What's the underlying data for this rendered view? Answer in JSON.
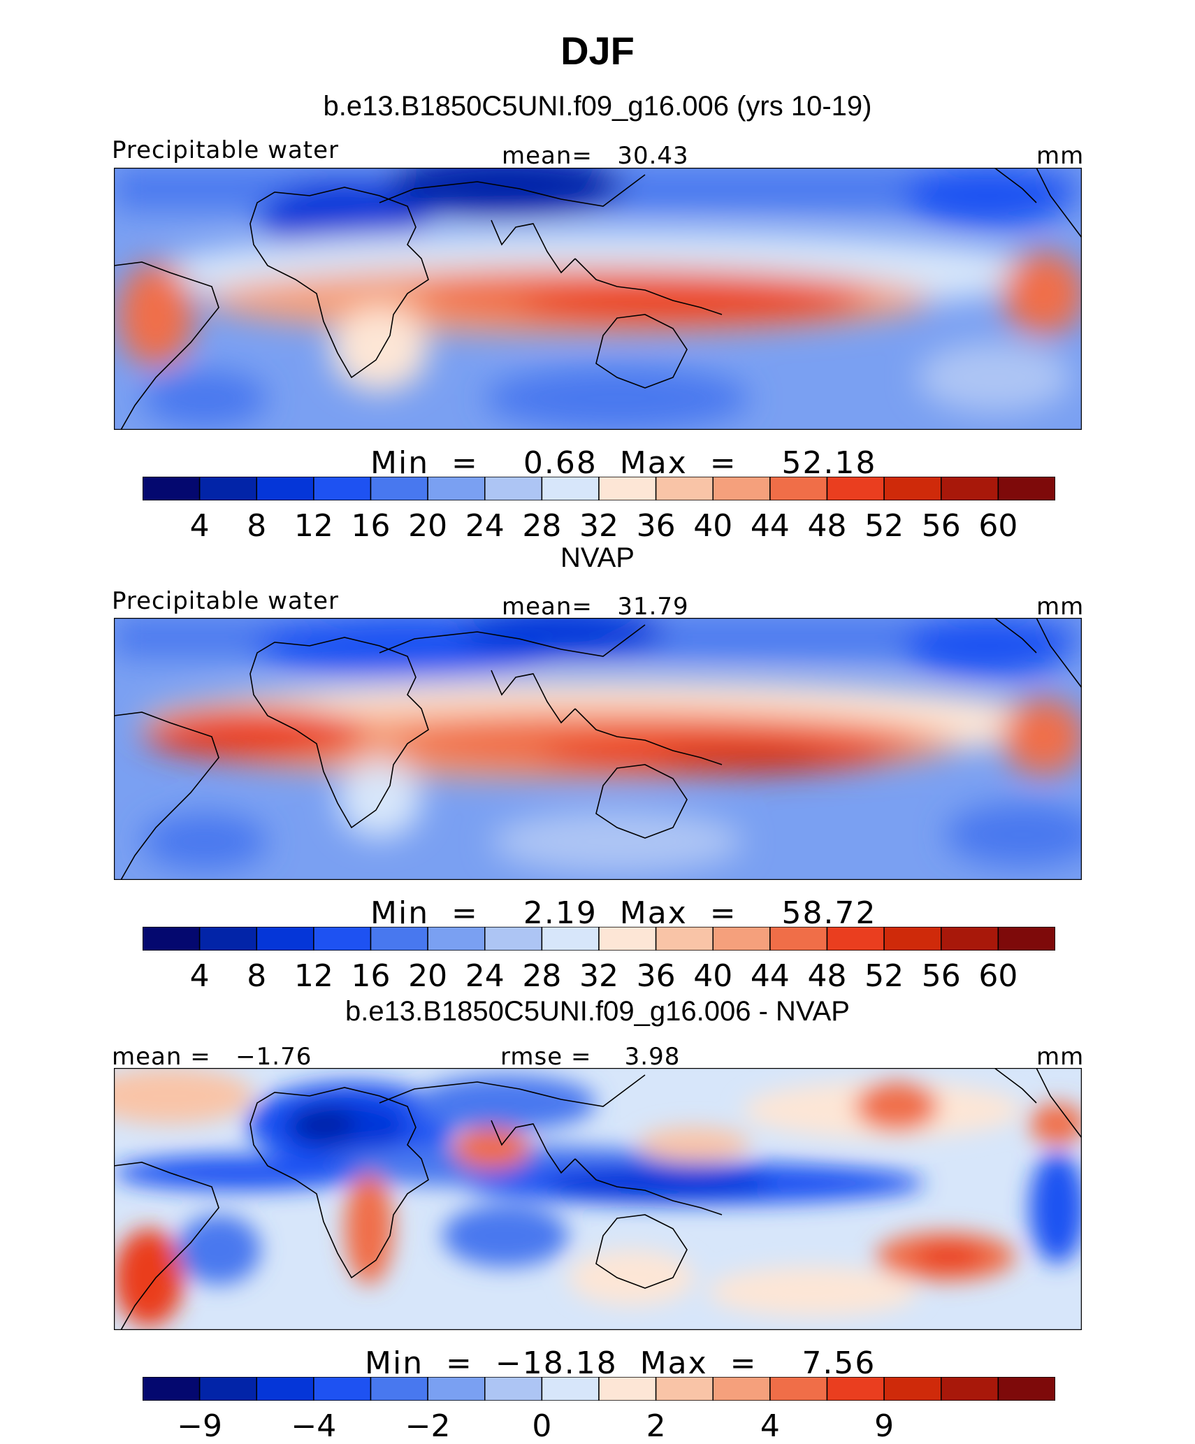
{
  "title": "DJF",
  "colorbar_colors": [
    "#04086f",
    "#0224a8",
    "#0536d8",
    "#1e52f2",
    "#4878ef",
    "#7aa0f2",
    "#adc5f4",
    "#d7e6fa",
    "#fde6d6",
    "#f9c4a7",
    "#f5a07c",
    "#f06e48",
    "#ea3e1f",
    "#cf2a0a",
    "#a8180a",
    "#7e0a0a"
  ],
  "panels": [
    {
      "title": "b.e13.B1850C5UNI.f09_g16.006 (yrs 10-19)",
      "left_label": "Precipitable water",
      "center_label": "mean=   30.43",
      "right_label": "mm",
      "minmax": "Min  =    0.68  Max  =    52.18",
      "ticks": [
        "4",
        "8",
        "12",
        "16",
        "20",
        "24",
        "28",
        "32",
        "36",
        "40",
        "44",
        "48",
        "52",
        "56",
        "60"
      ]
    },
    {
      "title": "NVAP",
      "left_label": "Precipitable water",
      "center_label": "mean=   31.79",
      "right_label": "mm",
      "minmax": "Min  =    2.19  Max  =    58.72",
      "ticks": [
        "4",
        "8",
        "12",
        "16",
        "20",
        "24",
        "28",
        "32",
        "36",
        "40",
        "44",
        "48",
        "52",
        "56",
        "60"
      ]
    },
    {
      "title": "b.e13.B1850C5UNI.f09_g16.006 - NVAP",
      "left_label": "mean =   −1.76",
      "center_label": "rmse =    3.98",
      "right_label": "mm",
      "minmax": "Min  =  −18.18  Max  =    7.56",
      "ticks": [
        "−9",
        "−4",
        "−2",
        "0",
        "2",
        "4",
        "9"
      ]
    }
  ]
}
